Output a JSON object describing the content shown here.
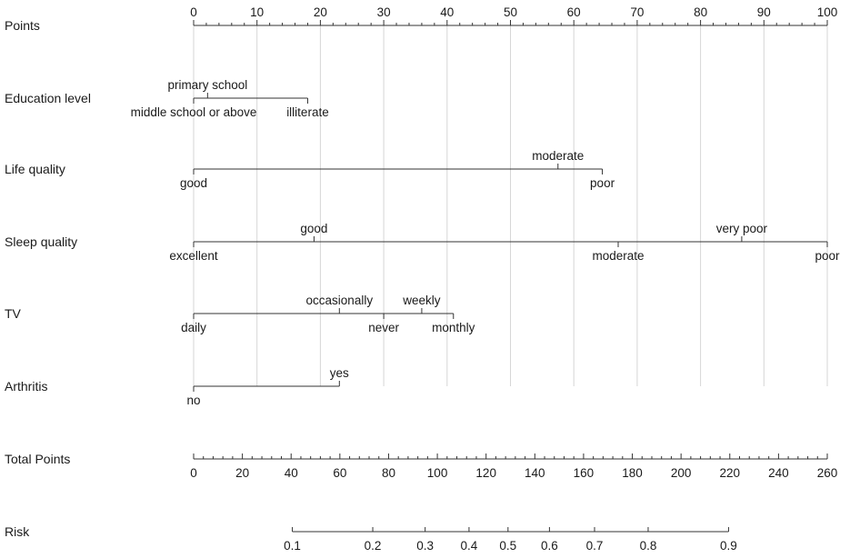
{
  "chart_data": {
    "type": "nomogram",
    "points_axis": {
      "label": "Points",
      "range": [
        0,
        100
      ],
      "major_ticks": [
        0,
        10,
        20,
        30,
        40,
        50,
        60,
        70,
        80,
        90,
        100
      ],
      "minor_step": 2,
      "grid": true
    },
    "variables": [
      {
        "label": "Education level",
        "line_range": [
          0,
          18
        ],
        "levels": [
          {
            "name": "primary school",
            "points": 2.2,
            "position": "above"
          },
          {
            "name": "middle school or above",
            "points": 0,
            "position": "below"
          },
          {
            "name": "illiterate",
            "points": 18,
            "position": "below"
          }
        ]
      },
      {
        "label": "Life quality",
        "line_range": [
          0,
          64.5
        ],
        "levels": [
          {
            "name": "moderate",
            "points": 57.5,
            "position": "above"
          },
          {
            "name": "good",
            "points": 0,
            "position": "below"
          },
          {
            "name": "poor",
            "points": 64.5,
            "position": "below"
          }
        ]
      },
      {
        "label": "Sleep quality",
        "line_range": [
          0,
          100
        ],
        "levels": [
          {
            "name": "good",
            "points": 19,
            "position": "above"
          },
          {
            "name": "very poor",
            "points": 86.5,
            "position": "above"
          },
          {
            "name": "excellent",
            "points": 0,
            "position": "below"
          },
          {
            "name": "moderate",
            "points": 67,
            "position": "below"
          },
          {
            "name": "poor",
            "points": 100,
            "position": "below"
          }
        ]
      },
      {
        "label": "TV",
        "line_range": [
          0,
          41
        ],
        "levels": [
          {
            "name": "occasionally",
            "points": 23,
            "position": "above"
          },
          {
            "name": "weekly",
            "points": 36,
            "position": "above"
          },
          {
            "name": "daily",
            "points": 0,
            "position": "below"
          },
          {
            "name": "never",
            "points": 30,
            "position": "below"
          },
          {
            "name": "monthly",
            "points": 41,
            "position": "below"
          }
        ]
      },
      {
        "label": "Arthritis",
        "line_range": [
          0,
          23
        ],
        "levels": [
          {
            "name": "yes",
            "points": 23,
            "position": "above"
          },
          {
            "name": "no",
            "points": 0,
            "position": "below"
          }
        ]
      }
    ],
    "total_points_axis": {
      "label": "Total Points",
      "range": [
        0,
        260
      ],
      "major_ticks": [
        0,
        20,
        40,
        60,
        80,
        100,
        120,
        140,
        160,
        180,
        200,
        220,
        240,
        260
      ],
      "minor_step": 4
    },
    "risk_axis": {
      "label": "Risk",
      "ticks": [
        {
          "label": "0.1",
          "total_points": 40.5
        },
        {
          "label": "0.2",
          "total_points": 73.5
        },
        {
          "label": "0.3",
          "total_points": 95
        },
        {
          "label": "0.4",
          "total_points": 113
        },
        {
          "label": "0.5",
          "total_points": 129
        },
        {
          "label": "0.6",
          "total_points": 146
        },
        {
          "label": "0.7",
          "total_points": 164.5
        },
        {
          "label": "0.8",
          "total_points": 186.5
        },
        {
          "label": "0.9",
          "total_points": 219.5
        }
      ]
    }
  }
}
